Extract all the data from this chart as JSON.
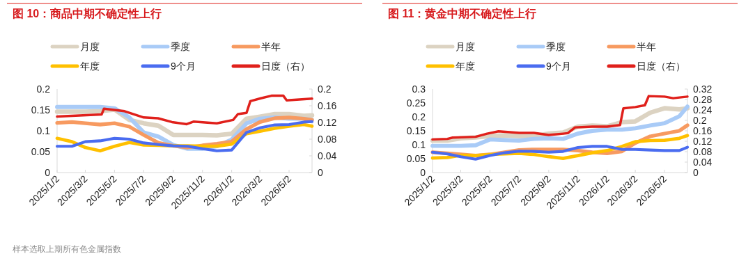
{
  "chart_data": [
    {
      "type": "line",
      "title": "图 10：商品中期不确定性上行",
      "legend": "top",
      "annotations": [
        "样本选取上期所有色金属指数"
      ],
      "x": [
        "2025-01-02",
        "2025-02-02",
        "2025-03-02",
        "2025-04-02",
        "2025-05-02",
        "2025-06-02",
        "2025-07-02",
        "2025-08-02",
        "2025-09-02",
        "2025-10-02",
        "2025-11-02",
        "2025-12-02",
        "2026-01-02",
        "2026-02-02",
        "2026-03-02",
        "2026-04-02",
        "2026-05-02",
        "2026-06-02",
        "2026-06-19"
      ],
      "xlim": [
        "2025-01-02",
        "2026-06-19"
      ],
      "xticks": [
        {
          "value": "2025-01-02",
          "label": "2025/1/2"
        },
        {
          "value": "2025-03-02",
          "label": "2025/3/2"
        },
        {
          "value": "2025-05-02",
          "label": "2025/5/2"
        },
        {
          "value": "2025-07-02",
          "label": "2025/7/2"
        },
        {
          "value": "2025-09-02",
          "label": "2025/9/2"
        },
        {
          "value": "2025-11-02",
          "label": "2025/11/2"
        },
        {
          "value": "2026-01-02",
          "label": "2026/1/2"
        },
        {
          "value": "2026-03-02",
          "label": "2026/3/2"
        },
        {
          "value": "2026-05-02",
          "label": "2026/5/2"
        }
      ],
      "ylim": [
        0,
        0.2
      ],
      "yticks": [
        0,
        0.05,
        0.1,
        0.15,
        0.2
      ],
      "y2lim": [
        0,
        0.2
      ],
      "y2ticks": [
        0,
        0.04,
        0.08,
        0.12,
        0.16,
        0.2
      ],
      "series": [
        {
          "name": "月度",
          "color": "#dcd3c2",
          "values": [
            0.146,
            0.146,
            0.146,
            0.147,
            0.151,
            0.126,
            0.118,
            0.112,
            0.09,
            0.09,
            0.09,
            0.089,
            0.093,
            0.129,
            0.134,
            0.14,
            0.14,
            0.136,
            0.137
          ]
        },
        {
          "name": "季度",
          "color": "#a9cbf7",
          "values": [
            0.157,
            0.157,
            0.157,
            0.157,
            0.154,
            0.132,
            0.096,
            0.086,
            0.066,
            0.057,
            0.057,
            0.063,
            0.079,
            0.118,
            0.129,
            0.132,
            0.129,
            0.129,
            0.126
          ]
        },
        {
          "name": "半年",
          "color": "#f79a60",
          "values": [
            0.119,
            0.121,
            0.118,
            0.115,
            0.118,
            0.11,
            0.09,
            0.071,
            0.064,
            0.06,
            0.065,
            0.069,
            0.074,
            0.104,
            0.121,
            0.13,
            0.132,
            0.129,
            0.126
          ]
        },
        {
          "name": "年度",
          "color": "#ffc000",
          "values": [
            0.082,
            0.074,
            0.06,
            0.052,
            0.063,
            0.072,
            0.066,
            0.065,
            0.064,
            0.064,
            0.063,
            0.063,
            0.068,
            0.093,
            0.099,
            0.106,
            0.111,
            0.115,
            0.111
          ]
        },
        {
          "name": "9个月",
          "color": "#4a6cf0",
          "values": [
            0.063,
            0.063,
            0.074,
            0.076,
            0.082,
            0.08,
            0.071,
            0.067,
            0.064,
            0.063,
            0.057,
            0.052,
            0.054,
            0.096,
            0.107,
            0.114,
            0.115,
            0.121,
            0.122
          ]
        },
        {
          "name": "日度（右）",
          "color": "#e0201b",
          "axis": "y2",
          "x": [
            "2025-01-02",
            "2025-04-05",
            "2025-04-10",
            "2025-05-23",
            "2025-07-02",
            "2025-08-01",
            "2025-08-30",
            "2025-09-30",
            "2025-10-14",
            "2025-12-02",
            "2026-01-05",
            "2026-01-15",
            "2026-02-02",
            "2026-02-10",
            "2026-03-04",
            "2026-03-26",
            "2026-04-20",
            "2026-04-27",
            "2026-06-19"
          ],
          "values": [
            0.134,
            0.139,
            0.153,
            0.147,
            0.132,
            0.13,
            0.121,
            0.116,
            0.122,
            0.118,
            0.126,
            0.14,
            0.143,
            0.171,
            0.178,
            0.184,
            0.184,
            0.173,
            0.177
          ]
        }
      ]
    },
    {
      "type": "line",
      "title": "图 11：黄金中期不确定性上行",
      "legend": "top",
      "x": [
        "2025-01-02",
        "2025-02-02",
        "2025-03-02",
        "2025-04-02",
        "2025-05-02",
        "2025-06-02",
        "2025-07-02",
        "2025-08-02",
        "2025-09-02",
        "2025-10-02",
        "2025-11-02",
        "2025-12-02",
        "2026-01-02",
        "2026-02-02",
        "2026-03-02",
        "2026-04-02",
        "2026-05-02",
        "2026-06-02",
        "2026-06-19"
      ],
      "xlim": [
        "2025-01-02",
        "2026-06-19"
      ],
      "xticks": [
        {
          "value": "2025-01-02",
          "label": "2025/1/2"
        },
        {
          "value": "2025-03-02",
          "label": "2025/3/2"
        },
        {
          "value": "2025-05-02",
          "label": "2025/5/2"
        },
        {
          "value": "2025-07-02",
          "label": "2025/7/2"
        },
        {
          "value": "2025-09-02",
          "label": "2025/9/2"
        },
        {
          "value": "2025-11-02",
          "label": "2025/11/2"
        },
        {
          "value": "2026-01-02",
          "label": "2026/1/2"
        },
        {
          "value": "2026-03-02",
          "label": "2026/3/2"
        },
        {
          "value": "2026-05-02",
          "label": "2026/5/2"
        }
      ],
      "ylim": [
        0,
        0.3
      ],
      "yticks": [
        0,
        0.05,
        0.1,
        0.15,
        0.2,
        0.25,
        0.3
      ],
      "y2lim": [
        0,
        0.32
      ],
      "y2ticks": [
        0,
        0.04,
        0.08,
        0.12,
        0.16,
        0.2,
        0.24,
        0.28,
        0.32
      ],
      "series": [
        {
          "name": "月度",
          "color": "#dcd3c2",
          "values": [
            0.115,
            0.115,
            0.123,
            0.126,
            0.131,
            0.134,
            0.131,
            0.131,
            0.14,
            0.144,
            0.165,
            0.169,
            0.166,
            0.181,
            0.184,
            0.215,
            0.231,
            0.227,
            0.231
          ]
        },
        {
          "name": "季度",
          "color": "#a9cbf7",
          "values": [
            0.096,
            0.096,
            0.096,
            0.098,
            0.119,
            0.117,
            0.115,
            0.121,
            0.123,
            0.121,
            0.14,
            0.15,
            0.154,
            0.154,
            0.159,
            0.169,
            0.177,
            0.202,
            0.237
          ]
        },
        {
          "name": "半年",
          "color": "#f79a60",
          "values": [
            0.073,
            0.069,
            0.065,
            0.061,
            0.065,
            0.073,
            0.081,
            0.083,
            0.083,
            0.083,
            0.079,
            0.073,
            0.069,
            0.076,
            0.106,
            0.13,
            0.14,
            0.15,
            0.17
          ]
        },
        {
          "name": "年度",
          "color": "#ffc000",
          "values": [
            0.052,
            0.054,
            0.062,
            0.061,
            0.065,
            0.067,
            0.069,
            0.065,
            0.057,
            0.051,
            0.061,
            0.071,
            0.079,
            0.094,
            0.111,
            0.115,
            0.116,
            0.123,
            0.133
          ]
        },
        {
          "name": "9个月",
          "color": "#4a6cf0",
          "values": [
            0.073,
            0.067,
            0.057,
            0.048,
            0.061,
            0.071,
            0.077,
            0.076,
            0.073,
            0.076,
            0.09,
            0.094,
            0.094,
            0.083,
            0.083,
            0.081,
            0.079,
            0.079,
            0.091
          ]
        },
        {
          "name": "日度（右）",
          "color": "#e0201b",
          "axis": "y2",
          "x": [
            "2025-01-02",
            "2025-02-02",
            "2025-02-13",
            "2025-04-02",
            "2025-04-26",
            "2025-05-20",
            "2025-07-02",
            "2025-08-02",
            "2025-09-02",
            "2025-10-02",
            "2025-10-12",
            "2025-10-27",
            "2025-12-02",
            "2026-01-02",
            "2026-01-29",
            "2026-02-05",
            "2026-03-02",
            "2026-03-22",
            "2026-03-30",
            "2026-05-02",
            "2026-05-20",
            "2026-06-19"
          ],
          "values": [
            0.127,
            0.129,
            0.134,
            0.137,
            0.149,
            0.158,
            0.152,
            0.152,
            0.144,
            0.149,
            0.151,
            0.173,
            0.176,
            0.176,
            0.182,
            0.246,
            0.251,
            0.258,
            0.293,
            0.291,
            0.285,
            0.291
          ]
        }
      ]
    }
  ]
}
